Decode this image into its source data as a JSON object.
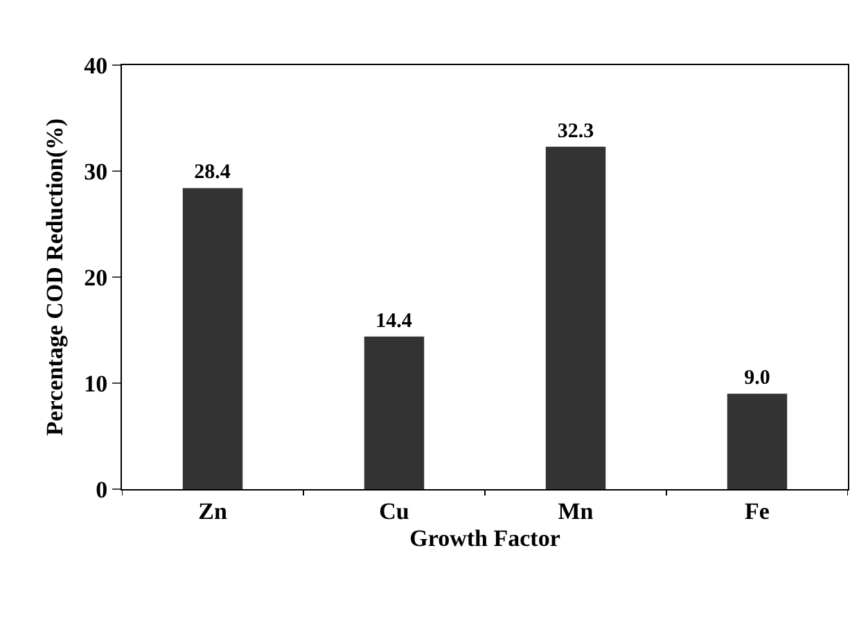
{
  "chart_data": {
    "type": "bar",
    "xlabel": "Growth Factor",
    "ylabel": "Percentage COD Reduction(%)",
    "categories": [
      "Zn",
      "Cu",
      "Mn",
      "Fe"
    ],
    "values": [
      28.4,
      14.4,
      32.3,
      9.0
    ],
    "value_labels": [
      "28.4",
      "14.4",
      "32.3",
      "9.0"
    ],
    "color": "#333333",
    "ylim": [
      0,
      40
    ],
    "yticks": [
      0,
      10,
      20,
      30,
      40
    ],
    "grid": false
  }
}
